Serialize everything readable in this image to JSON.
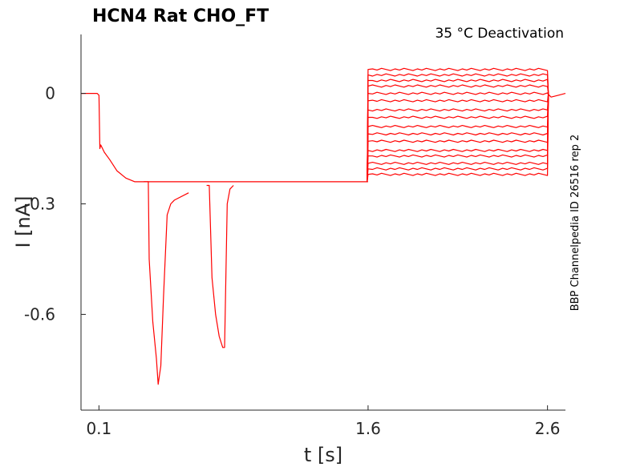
{
  "chart_data": {
    "type": "line",
    "title": "HCN4  Rat  CHO_FT",
    "subtitle": "35 °C  Deactivation",
    "side_note": "BBP Channelpedia ID 26516 rep 2",
    "xlabel": "t [s]",
    "ylabel": "I [nA]",
    "xlim": [
      0.0,
      2.7
    ],
    "ylim": [
      -0.86,
      0.16
    ],
    "xticks": [
      0.1,
      1.6,
      2.6
    ],
    "xtick_labels": [
      "0.1",
      "1.6",
      "2.6"
    ],
    "yticks": [
      0,
      -0.3,
      -0.6
    ],
    "ytick_labels": [
      "0",
      "-0.3",
      "-0.6"
    ],
    "grid": false,
    "line_color": "#ff0000",
    "prepulse_trace": {
      "name": "",
      "x": [
        0.0,
        0.09,
        0.1,
        0.105,
        0.11,
        0.13,
        0.16,
        0.2,
        0.25,
        0.3,
        0.35,
        0.5,
        0.8,
        1.1,
        1.4,
        1.6
      ],
      "y": [
        0.0,
        0.0,
        -0.005,
        -0.15,
        -0.14,
        -0.16,
        -0.18,
        -0.21,
        -0.23,
        -0.24,
        -0.24,
        -0.24,
        -0.24,
        -0.24,
        -0.24,
        -0.24
      ]
    },
    "artifact_traces": [
      {
        "name": "",
        "x": [
          0.35,
          0.375,
          0.38,
          0.4,
          0.42,
          0.43,
          0.445,
          0.46,
          0.48,
          0.5,
          0.52,
          0.6
        ],
        "y": [
          -0.24,
          -0.24,
          -0.45,
          -0.62,
          -0.72,
          -0.79,
          -0.74,
          -0.55,
          -0.33,
          -0.3,
          -0.29,
          -0.27
        ]
      },
      {
        "name": "",
        "x": [
          0.7,
          0.715,
          0.73,
          0.75,
          0.77,
          0.79,
          0.8,
          0.815,
          0.83,
          0.85
        ],
        "y": [
          -0.25,
          -0.25,
          -0.5,
          -0.6,
          -0.66,
          -0.69,
          -0.69,
          -0.3,
          -0.26,
          -0.25
        ]
      }
    ],
    "tail_levels_nA": [
      0.065,
      0.05,
      0.035,
      0.02,
      0.0,
      -0.02,
      -0.045,
      -0.065,
      -0.09,
      -0.11,
      -0.13,
      -0.155,
      -0.17,
      -0.19,
      -0.205,
      -0.22
    ],
    "tail_start_s": 1.6,
    "tail_end_s": 2.6,
    "post_trace": {
      "name": "",
      "x": [
        2.6,
        2.62,
        2.66,
        2.7
      ],
      "y": [
        0.0,
        -0.01,
        -0.005,
        0.0
      ]
    }
  }
}
